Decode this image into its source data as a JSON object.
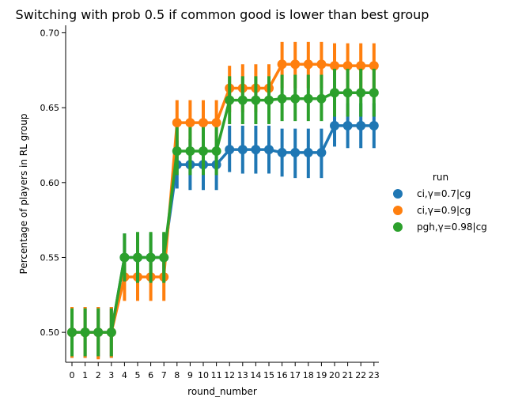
{
  "chart_data": {
    "type": "line",
    "title": "Switching with prob 0.5 if common good is lower than best group",
    "xlabel": "round_number",
    "ylabel": "Percentage of players in RL group",
    "x": [
      "0",
      "1",
      "2",
      "3",
      "4",
      "5",
      "6",
      "7",
      "8",
      "9",
      "10",
      "11",
      "12",
      "13",
      "14",
      "15",
      "16",
      "17",
      "18",
      "19",
      "20",
      "21",
      "22",
      "23"
    ],
    "ylim": [
      0.48,
      0.705
    ],
    "yticks": [
      0.5,
      0.55,
      0.6,
      0.65,
      0.7
    ],
    "ytick_labels": [
      "0.50",
      "0.55",
      "0.60",
      "0.65",
      "0.70"
    ],
    "grid": false,
    "legend": {
      "title": "run",
      "position": "right"
    },
    "series": [
      {
        "name": "ci,γ=0.7|cg",
        "color": "#1f77b4",
        "values": [
          0.5,
          0.5,
          0.5,
          0.5,
          0.55,
          0.55,
          0.55,
          0.55,
          0.612,
          0.612,
          0.612,
          0.612,
          0.622,
          0.622,
          0.622,
          0.622,
          0.62,
          0.62,
          0.62,
          0.62,
          0.638,
          0.638,
          0.638,
          0.638
        ],
        "ci_low": [
          0.483,
          0.483,
          0.483,
          0.483,
          0.534,
          0.534,
          0.534,
          0.534,
          0.596,
          0.595,
          0.595,
          0.595,
          0.607,
          0.606,
          0.606,
          0.606,
          0.604,
          0.603,
          0.603,
          0.603,
          0.624,
          0.623,
          0.623,
          0.623
        ],
        "ci_high": [
          0.517,
          0.517,
          0.517,
          0.517,
          0.566,
          0.566,
          0.566,
          0.566,
          0.628,
          0.629,
          0.629,
          0.629,
          0.638,
          0.638,
          0.638,
          0.638,
          0.636,
          0.636,
          0.636,
          0.636,
          0.653,
          0.653,
          0.653,
          0.653
        ]
      },
      {
        "name": "ci,γ=0.9|cg",
        "color": "#ff7f0e",
        "values": [
          0.5,
          0.5,
          0.5,
          0.5,
          0.537,
          0.537,
          0.537,
          0.537,
          0.64,
          0.64,
          0.64,
          0.64,
          0.663,
          0.663,
          0.663,
          0.663,
          0.679,
          0.679,
          0.679,
          0.679,
          0.678,
          0.678,
          0.678,
          0.678
        ],
        "ci_low": [
          0.483,
          0.483,
          0.482,
          0.483,
          0.521,
          0.521,
          0.521,
          0.521,
          0.625,
          0.625,
          0.625,
          0.625,
          0.647,
          0.647,
          0.647,
          0.647,
          0.663,
          0.663,
          0.663,
          0.663,
          0.662,
          0.662,
          0.662,
          0.662
        ],
        "ci_high": [
          0.517,
          0.517,
          0.517,
          0.517,
          0.553,
          0.553,
          0.553,
          0.553,
          0.655,
          0.655,
          0.655,
          0.655,
          0.678,
          0.679,
          0.679,
          0.679,
          0.694,
          0.694,
          0.694,
          0.694,
          0.693,
          0.693,
          0.693,
          0.693
        ]
      },
      {
        "name": "pgh,γ=0.98|cg",
        "color": "#2ca02c",
        "values": [
          0.5,
          0.5,
          0.5,
          0.5,
          0.55,
          0.55,
          0.55,
          0.55,
          0.621,
          0.621,
          0.621,
          0.621,
          0.655,
          0.655,
          0.655,
          0.655,
          0.656,
          0.656,
          0.656,
          0.656,
          0.66,
          0.66,
          0.66,
          0.66
        ],
        "ci_low": [
          0.484,
          0.484,
          0.484,
          0.484,
          0.534,
          0.533,
          0.533,
          0.533,
          0.605,
          0.605,
          0.605,
          0.605,
          0.639,
          0.639,
          0.639,
          0.639,
          0.641,
          0.641,
          0.641,
          0.641,
          0.644,
          0.644,
          0.644,
          0.644
        ],
        "ci_high": [
          0.516,
          0.516,
          0.516,
          0.516,
          0.566,
          0.567,
          0.567,
          0.567,
          0.637,
          0.637,
          0.637,
          0.637,
          0.671,
          0.671,
          0.671,
          0.671,
          0.672,
          0.672,
          0.672,
          0.672,
          0.676,
          0.676,
          0.676,
          0.676
        ]
      }
    ]
  }
}
